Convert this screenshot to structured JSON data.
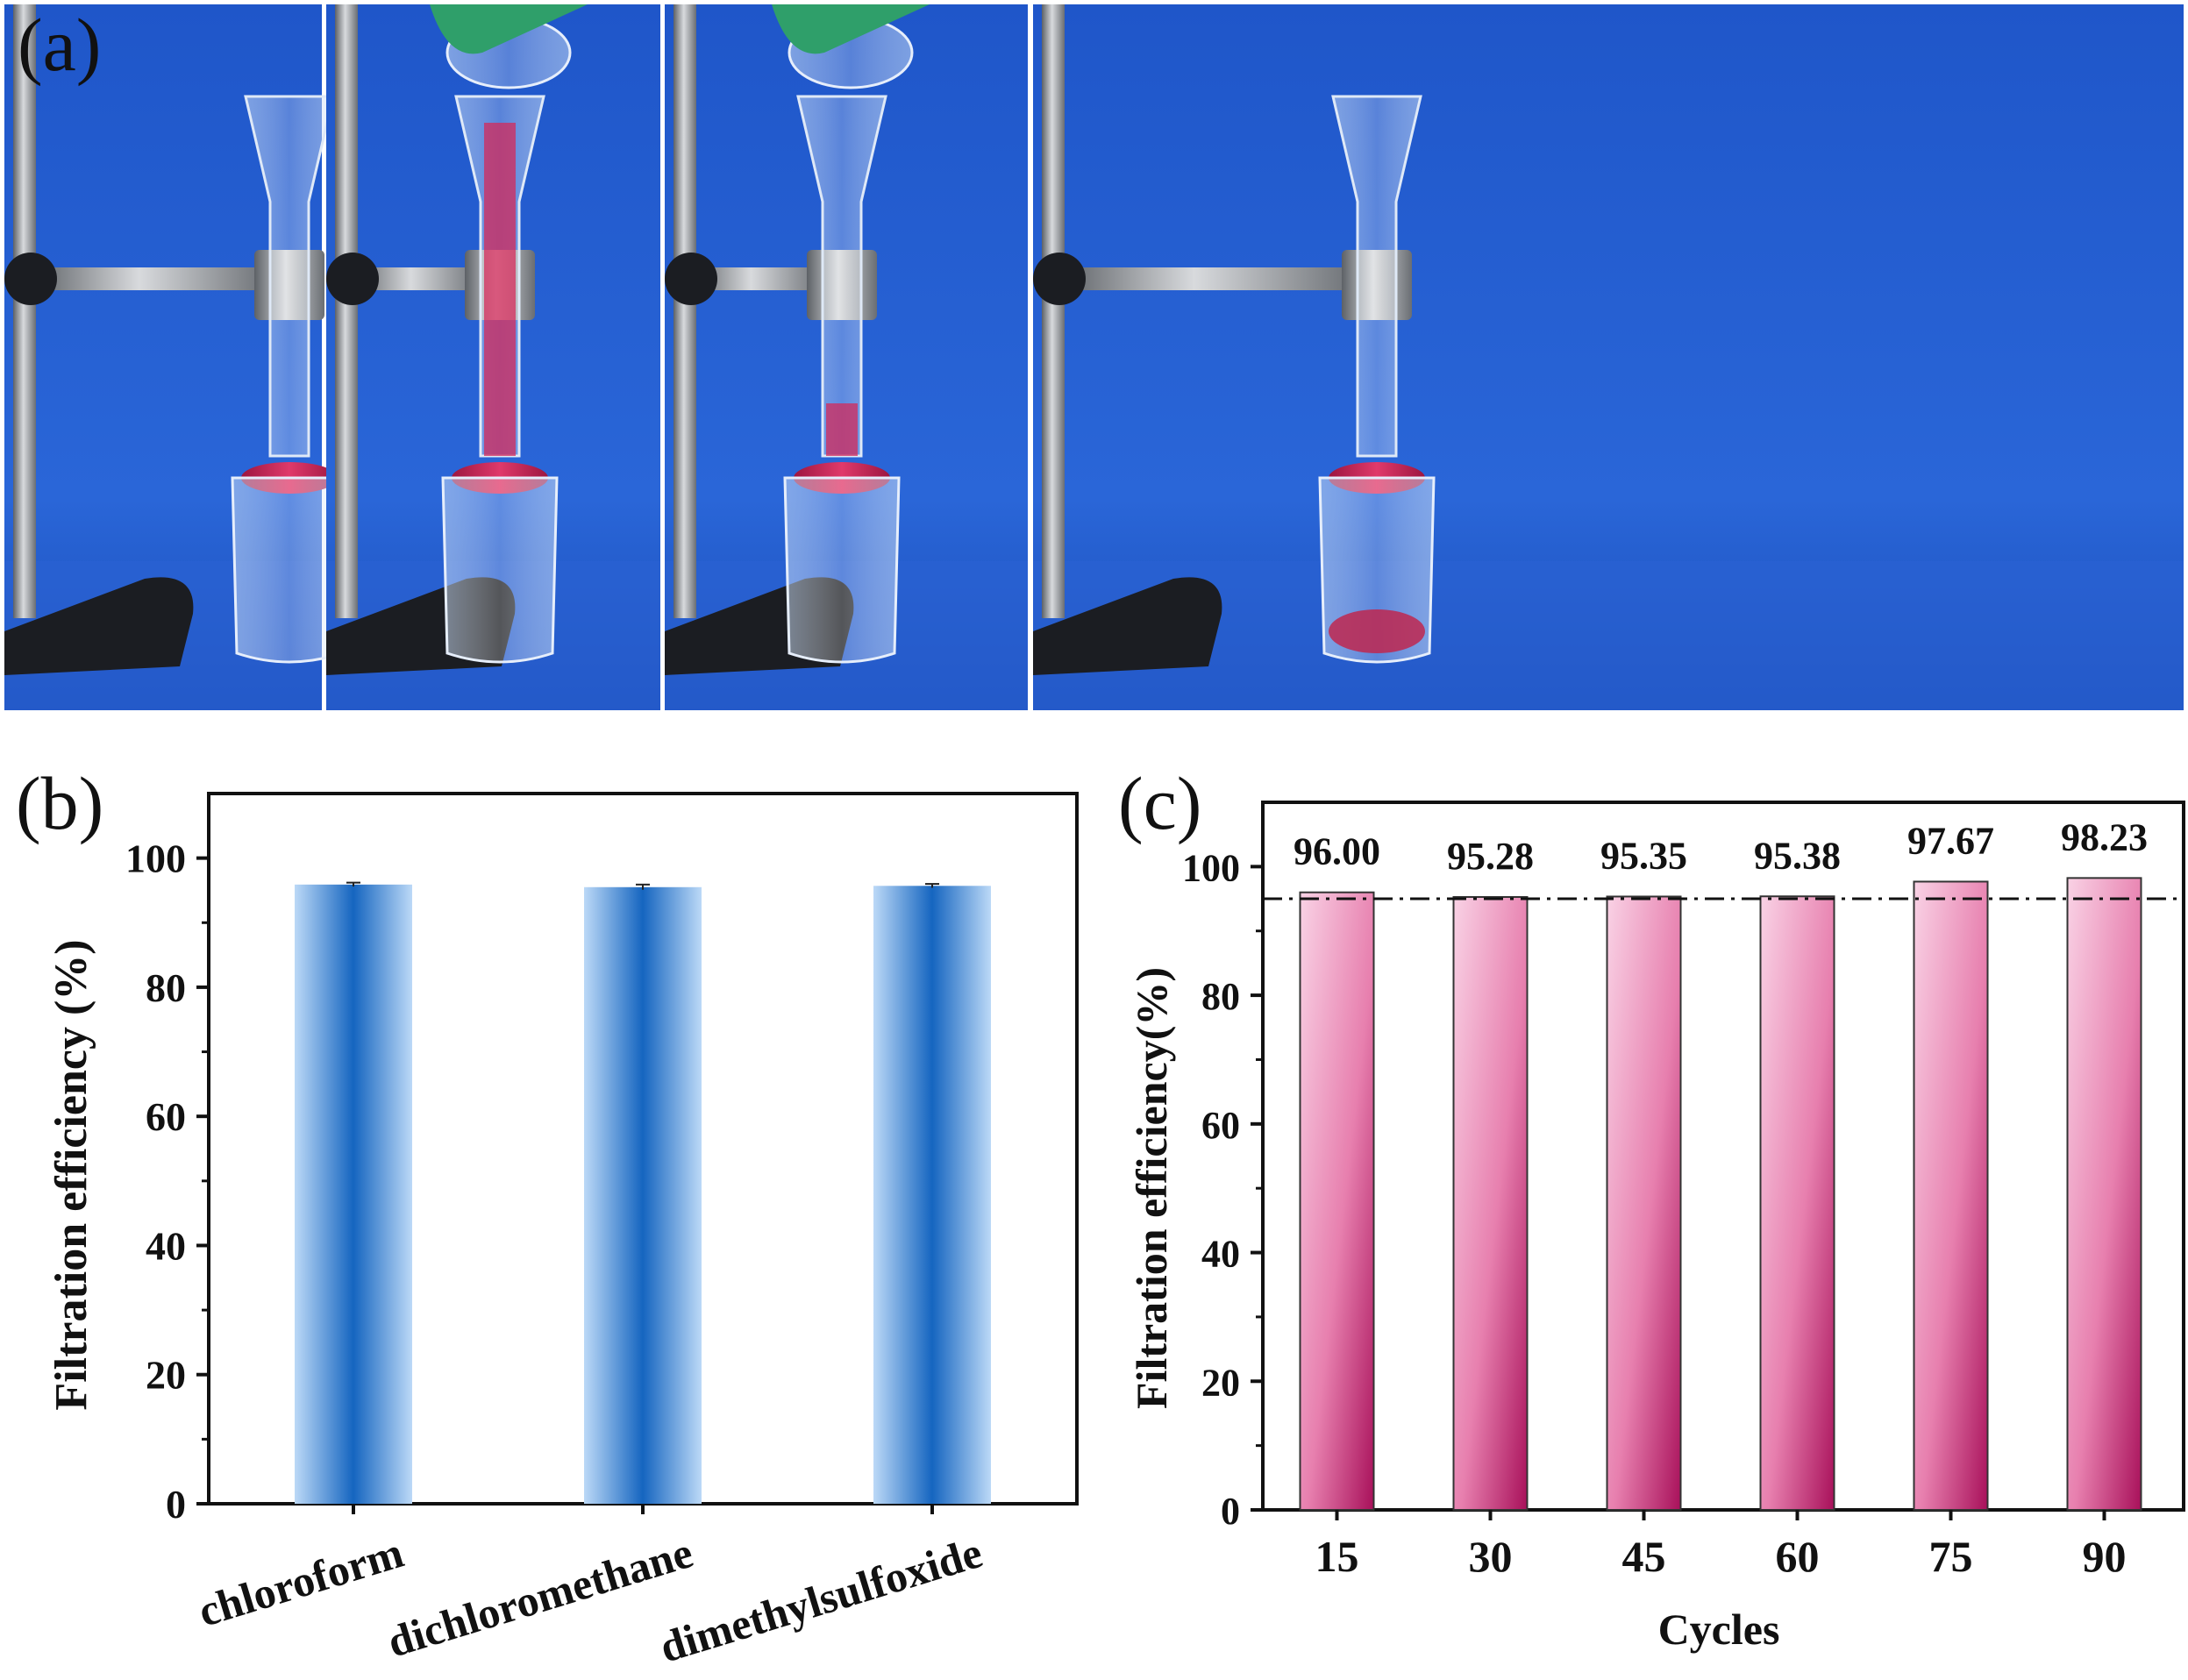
{
  "panels": {
    "a_label": "(a)",
    "b_label": "(b)",
    "c_label": "(c)"
  },
  "photos": {
    "stand_color": "#8a8e93",
    "background_color": "#1f56c9",
    "liquid_color": "#d42a5a",
    "scene_count": 4
  },
  "chart_data": [
    {
      "type": "bar",
      "categories": [
        "chloroform",
        "dichloromethane",
        "dimethylsulfoxide"
      ],
      "values": [
        95.9,
        95.5,
        95.7
      ],
      "errors": [
        0.3,
        0.4,
        0.3
      ],
      "title": "",
      "xlabel": "",
      "ylabel": "Filtration efficiency (%)",
      "ylim": [
        0,
        110
      ],
      "yticks": [
        0,
        20,
        40,
        60,
        80,
        100
      ],
      "grid": false,
      "bar_colors": {
        "edge": "#bcd9f7",
        "center": "#1565c0"
      }
    },
    {
      "type": "bar",
      "categories": [
        "15",
        "30",
        "45",
        "60",
        "75",
        "90"
      ],
      "values": [
        96.0,
        95.28,
        95.35,
        95.38,
        97.67,
        98.23
      ],
      "data_labels": [
        "96.00",
        "95.28",
        "95.35",
        "95.38",
        "97.67",
        "98.23"
      ],
      "reference_line": 95,
      "title": "",
      "xlabel": "Cycles",
      "ylabel": "Filtration efficiency(%)",
      "ylim": [
        0,
        110
      ],
      "yticks": [
        0,
        20,
        40,
        60,
        80,
        100
      ],
      "grid": false,
      "bar_colors": {
        "light": "#f7c6de",
        "dark": "#a8105a"
      }
    }
  ]
}
